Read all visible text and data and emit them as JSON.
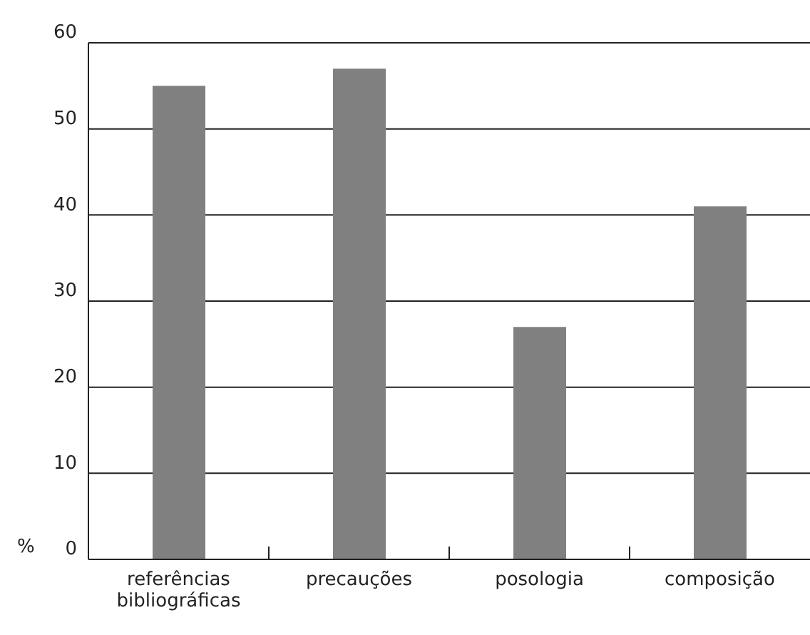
{
  "chart_data": {
    "type": "bar",
    "ylabel": "%",
    "categories": [
      "referências bibliográficas",
      "precauções",
      "posologia",
      "composição"
    ],
    "values": [
      55,
      57,
      27,
      41
    ],
    "color": "#808080",
    "ylim": [
      0,
      60
    ],
    "yticks": [
      0,
      10,
      20,
      30,
      40,
      50,
      60
    ],
    "grid": "y"
  }
}
